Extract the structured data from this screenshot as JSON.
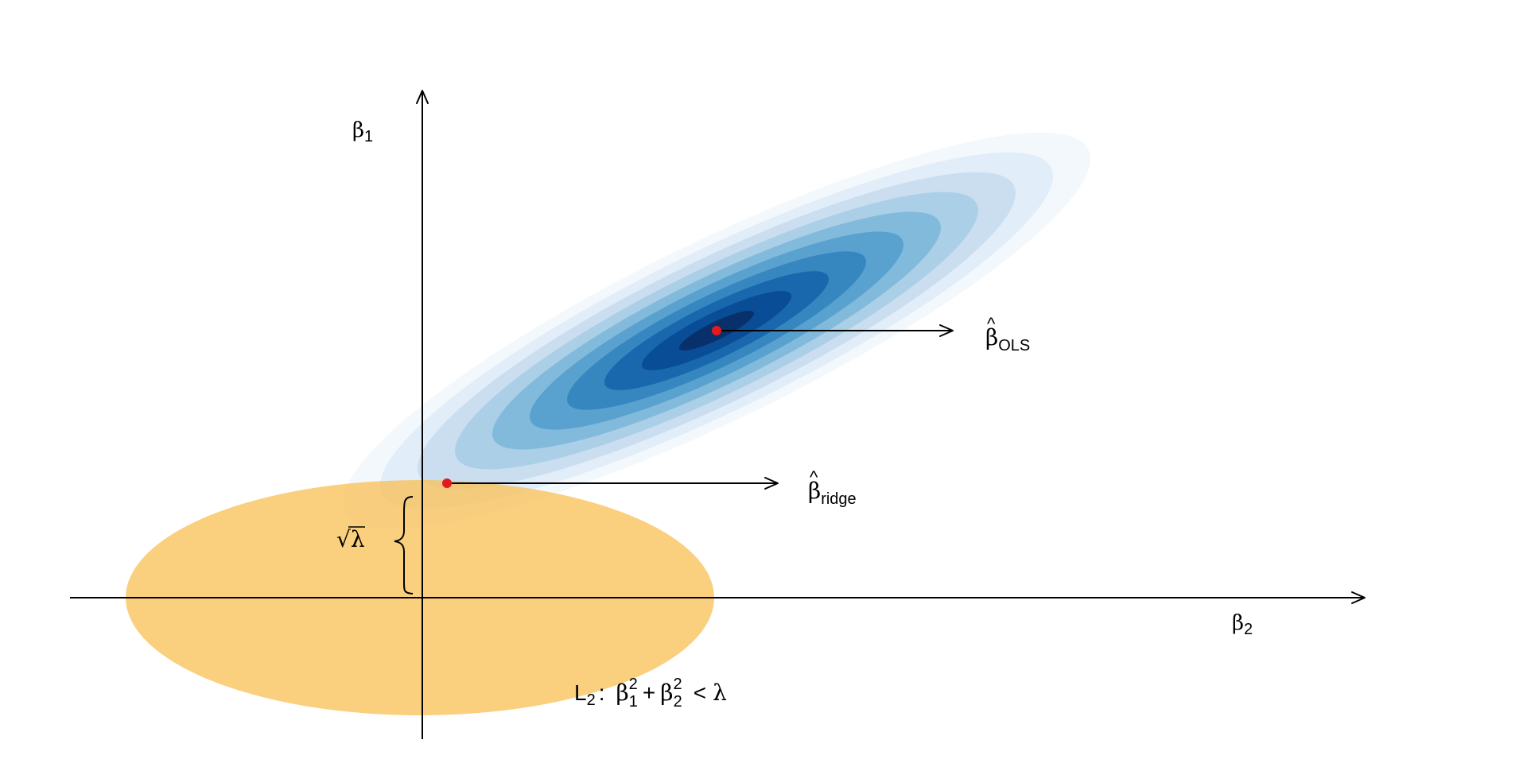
{
  "axes": {
    "vertical": {
      "symbol": "β",
      "subscript": "1"
    },
    "horizontal": {
      "symbol": "β",
      "subscript": "2"
    }
  },
  "labels": {
    "ols": {
      "symbol": "β",
      "hat": "^",
      "subscript": "OLS"
    },
    "ridge": {
      "symbol": "β",
      "hat": "^",
      "subscript": "ridge"
    },
    "sqrt_lambda": {
      "radical": "√",
      "symbol": "λ"
    },
    "constraint": {
      "prefix": "L",
      "prefix_sub": "2",
      "colon": ":",
      "term1": "β",
      "term1_sup": "2",
      "term1_sub": "1",
      "plus": "+",
      "term2": "β",
      "term2_sup": "2",
      "term2_sub": "2",
      "relation": "<",
      "bound": "λ"
    }
  },
  "colors": {
    "constraint_fill": "#f9c25a",
    "point": "#e31a1c",
    "axis": "#000000",
    "contour_levels": [
      "#f3f8fd",
      "#e1edf8",
      "#cadef0",
      "#abcfe6",
      "#82badb",
      "#59a1cf",
      "#3686c0",
      "#1967ad",
      "#084d96",
      "#08306b"
    ]
  },
  "icons": {
    "arrow": "arrow-right-icon",
    "brace": "left-curly-brace"
  }
}
